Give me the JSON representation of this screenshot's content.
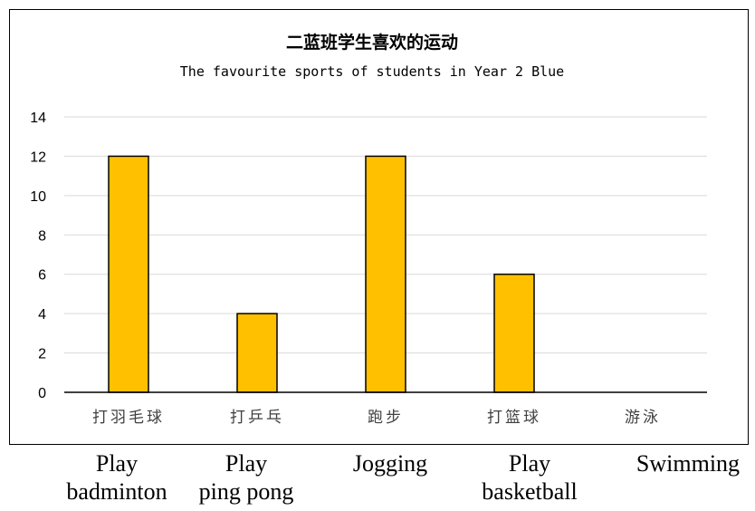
{
  "chart_data": {
    "type": "bar",
    "title": "二蓝班学生喜欢的运动",
    "subtitle": "The favourite sports of students in Year 2 Blue",
    "categories": [
      "打羽毛球",
      "打乒乓",
      "跑步",
      "打篮球",
      "游泳"
    ],
    "values": [
      12,
      4,
      12,
      6,
      0
    ],
    "ylim": [
      0,
      14
    ],
    "yticks": [
      "0",
      "2",
      "4",
      "6",
      "8",
      "10",
      "12",
      "14"
    ],
    "grid": true,
    "legend": "none",
    "bar_color": "#FFC000"
  },
  "english_labels": [
    {
      "line1": "Play",
      "line2": "badminton"
    },
    {
      "line1": "Play",
      "line2": "ping pong"
    },
    {
      "line1": "Jogging",
      "line2": ""
    },
    {
      "line1": "Play",
      "line2": "basketball"
    },
    {
      "line1": "Swimming",
      "line2": ""
    }
  ]
}
